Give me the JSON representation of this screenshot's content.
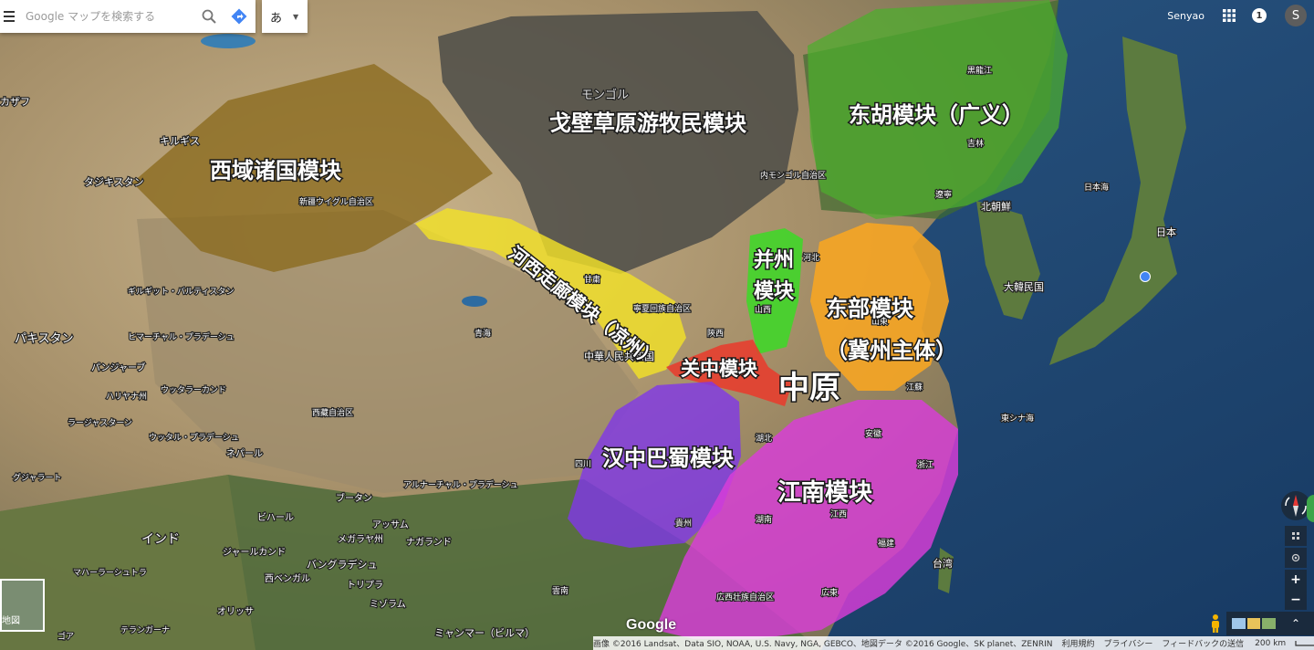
{
  "search": {
    "placeholder": "Google マップを検索する"
  },
  "ime": {
    "label": "あ"
  },
  "user": {
    "name": "Senyao",
    "notifications": "1",
    "avatar_initial": "S"
  },
  "modules": [
    {
      "label": "西域诸国模块",
      "color": "#8b6a1e"
    },
    {
      "label": "戈壁草原游牧民模块",
      "color": "#4c4c48"
    },
    {
      "label": "东胡模块（广义）",
      "color": "#4caf2c"
    },
    {
      "label": "河西走廊模块（凉州）",
      "color": "#f2e028"
    },
    {
      "label": "并州模块",
      "color": "#41d62a"
    },
    {
      "label": "东部模块（冀州主体）",
      "color": "#f6a523"
    },
    {
      "label": "关中模块",
      "color": "#ea3a2c"
    },
    {
      "label": "汉中巴蜀模块",
      "color": "#7f37e8"
    },
    {
      "label": "江南模块",
      "color": "#d93dd9"
    }
  ],
  "center_label": "中原",
  "places": [
    {
      "name": "モンゴル"
    },
    {
      "name": "キルギス"
    },
    {
      "name": "タジキスタン"
    },
    {
      "name": "カザフ"
    },
    {
      "name": "新疆ウイグル自治区"
    },
    {
      "name": "黒龍江"
    },
    {
      "name": "吉林"
    },
    {
      "name": "遼寧"
    },
    {
      "name": "北朝鮮"
    },
    {
      "name": "日本海"
    },
    {
      "name": "日本"
    },
    {
      "name": "大韓民国"
    },
    {
      "name": "東シナ海"
    },
    {
      "name": "江蘇"
    },
    {
      "name": "安徽"
    },
    {
      "name": "浙江"
    },
    {
      "name": "江西"
    },
    {
      "name": "湖南"
    },
    {
      "name": "福建"
    },
    {
      "name": "広東"
    },
    {
      "name": "広西壮族自治区"
    },
    {
      "name": "貴州"
    },
    {
      "name": "湖北"
    },
    {
      "name": "四川"
    },
    {
      "name": "陝西"
    },
    {
      "name": "山西"
    },
    {
      "name": "河北"
    },
    {
      "name": "山東"
    },
    {
      "name": "甘粛"
    },
    {
      "name": "青海"
    },
    {
      "name": "中華人民共和国"
    },
    {
      "name": "西藏自治区"
    },
    {
      "name": "寧夏回族自治区"
    },
    {
      "name": "内モンゴル自治区"
    },
    {
      "name": "台湾"
    },
    {
      "name": "パキスタン"
    },
    {
      "name": "ギルギット・バルティスタン"
    },
    {
      "name": "ヒマーチャル・プラデーシュ"
    },
    {
      "name": "パンジャーブ"
    },
    {
      "name": "ハリヤナ州"
    },
    {
      "name": "ウッタラーカンド"
    },
    {
      "name": "ラージャスターン"
    },
    {
      "name": "ウッタル・プラデーシュ"
    },
    {
      "name": "ネパール"
    },
    {
      "name": "グジャラート"
    },
    {
      "name": "インド"
    },
    {
      "name": "ビハール"
    },
    {
      "name": "ジャールカンド"
    },
    {
      "name": "西ベンガル"
    },
    {
      "name": "マハーラーシュトラ"
    },
    {
      "name": "オリッサ"
    },
    {
      "name": "テランガーナ"
    },
    {
      "name": "ゴア"
    },
    {
      "name": "ブータン"
    },
    {
      "name": "アルナーチャル・プラデーシュ"
    },
    {
      "name": "アッサム"
    },
    {
      "name": "メガラヤ州"
    },
    {
      "name": "ナガランド"
    },
    {
      "name": "バングラデシュ"
    },
    {
      "name": "トリプラ"
    },
    {
      "name": "ミゾラム"
    },
    {
      "name": "ミャンマー（ビルマ）"
    },
    {
      "name": "雲南"
    }
  ],
  "footer": {
    "attribution": "画像 ©2016 Landsat、Data SIO, NOAA, U.S. Navy, NGA, GEBCO、地図データ ©2016 Google、SK planet、ZENRIN",
    "terms": "利用規約",
    "privacy": "プライバシー",
    "feedback": "フィードバックの送信",
    "scale": "200 km"
  },
  "logo": "Google",
  "thumb_label": "地図",
  "controls": {
    "zoom_in": "+",
    "zoom_out": "−"
  }
}
